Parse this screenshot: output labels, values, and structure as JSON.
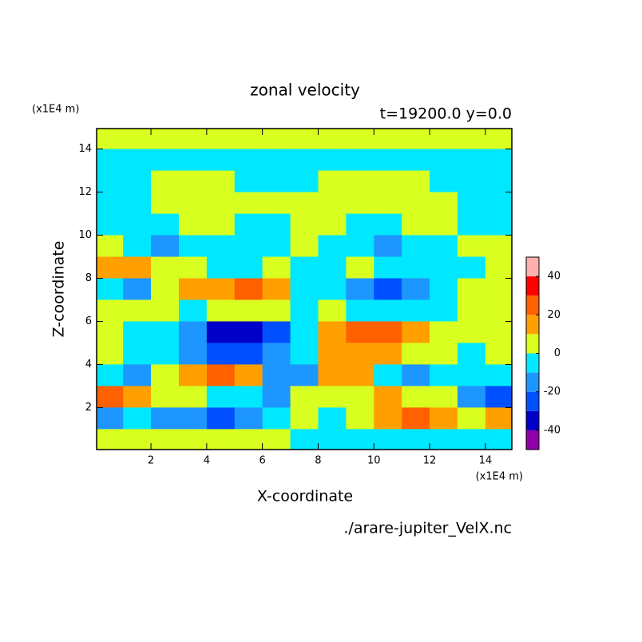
{
  "chart_data": {
    "type": "contour",
    "title": "zonal velocity",
    "subtitle": "t=19200.0 y=0.0",
    "x_label": "X-coordinate",
    "y_label": "Z-coordinate",
    "x_unit": "(x1E4 m)",
    "y_unit": "(x1E4 m)",
    "footer": "./arare-jupiter_VelX.nc",
    "xlim": [
      0.05,
      14.95
    ],
    "ylim": [
      0.05,
      14.95
    ],
    "xticks": [
      2,
      4,
      6,
      8,
      10,
      12,
      14
    ],
    "yticks": [
      2,
      4,
      6,
      8,
      10,
      12,
      14
    ],
    "x": [
      0.5,
      1.5,
      2.5,
      3.5,
      4.5,
      5.5,
      6.5,
      7.5,
      8.5,
      9.5,
      10.5,
      11.5,
      12.5,
      13.5,
      14.5
    ],
    "y": [
      14.5,
      13.5,
      12.5,
      11.5,
      10.5,
      9.5,
      8.5,
      7.5,
      6.5,
      5.5,
      4.5,
      3.5,
      2.5,
      1.5,
      0.5
    ],
    "z": [
      [
        5,
        5,
        5,
        5,
        5,
        5,
        5,
        5,
        5,
        5,
        5,
        5,
        5,
        5,
        5
      ],
      [
        -5,
        -5,
        -5,
        -5,
        -5,
        -5,
        -5,
        -5,
        -5,
        -5,
        -5,
        -5,
        -5,
        -5,
        -5
      ],
      [
        -5,
        -5,
        5,
        5,
        5,
        -5,
        -5,
        -5,
        5,
        5,
        5,
        5,
        -5,
        -5,
        -5
      ],
      [
        -5,
        -5,
        5,
        5,
        5,
        5,
        5,
        5,
        5,
        5,
        5,
        5,
        5,
        -5,
        -5
      ],
      [
        -5,
        -5,
        -5,
        5,
        5,
        -5,
        -5,
        5,
        5,
        -5,
        -5,
        5,
        5,
        -5,
        -5
      ],
      [
        5,
        -5,
        -15,
        -5,
        -5,
        -5,
        -5,
        5,
        -5,
        -5,
        -15,
        -5,
        -5,
        5,
        5
      ],
      [
        15,
        15,
        5,
        5,
        -5,
        -5,
        5,
        -5,
        -5,
        5,
        -5,
        -5,
        -5,
        -5,
        5
      ],
      [
        -5,
        -15,
        5,
        15,
        15,
        25,
        15,
        -5,
        -5,
        -15,
        -25,
        -15,
        -5,
        5,
        5
      ],
      [
        5,
        5,
        5,
        -5,
        5,
        5,
        5,
        -5,
        5,
        -5,
        -5,
        -5,
        -5,
        5,
        5
      ],
      [
        5,
        -5,
        -5,
        -15,
        -35,
        -35,
        -25,
        -5,
        15,
        25,
        25,
        15,
        5,
        5,
        5
      ],
      [
        5,
        -5,
        -5,
        -15,
        -25,
        -25,
        -15,
        -5,
        15,
        15,
        15,
        5,
        5,
        -5,
        5
      ],
      [
        -5,
        -15,
        5,
        15,
        25,
        15,
        -15,
        -15,
        15,
        15,
        -5,
        -15,
        -5,
        -5,
        -5
      ],
      [
        25,
        15,
        5,
        5,
        -5,
        -5,
        -15,
        5,
        5,
        5,
        15,
        5,
        5,
        -15,
        -25
      ],
      [
        -15,
        -5,
        -15,
        -15,
        -25,
        -15,
        -5,
        5,
        -5,
        5,
        15,
        25,
        15,
        5,
        15
      ],
      [
        5,
        5,
        5,
        5,
        5,
        5,
        5,
        -5,
        -5,
        -5,
        -5,
        -5,
        -5,
        -5,
        -5
      ]
    ],
    "levels": [
      -50,
      -40,
      -30,
      -20,
      -10,
      0,
      10,
      20,
      30,
      40,
      50
    ],
    "colors": [
      "#9000a8",
      "#0000c8",
      "#0050ff",
      "#1e96ff",
      "#00e8ff",
      "#d8ff20",
      "#ffa000",
      "#ff6000",
      "#ff0000",
      "#ffb0b0"
    ],
    "colorbar_ticks": [
      -40,
      -20,
      0,
      20,
      40
    ]
  }
}
